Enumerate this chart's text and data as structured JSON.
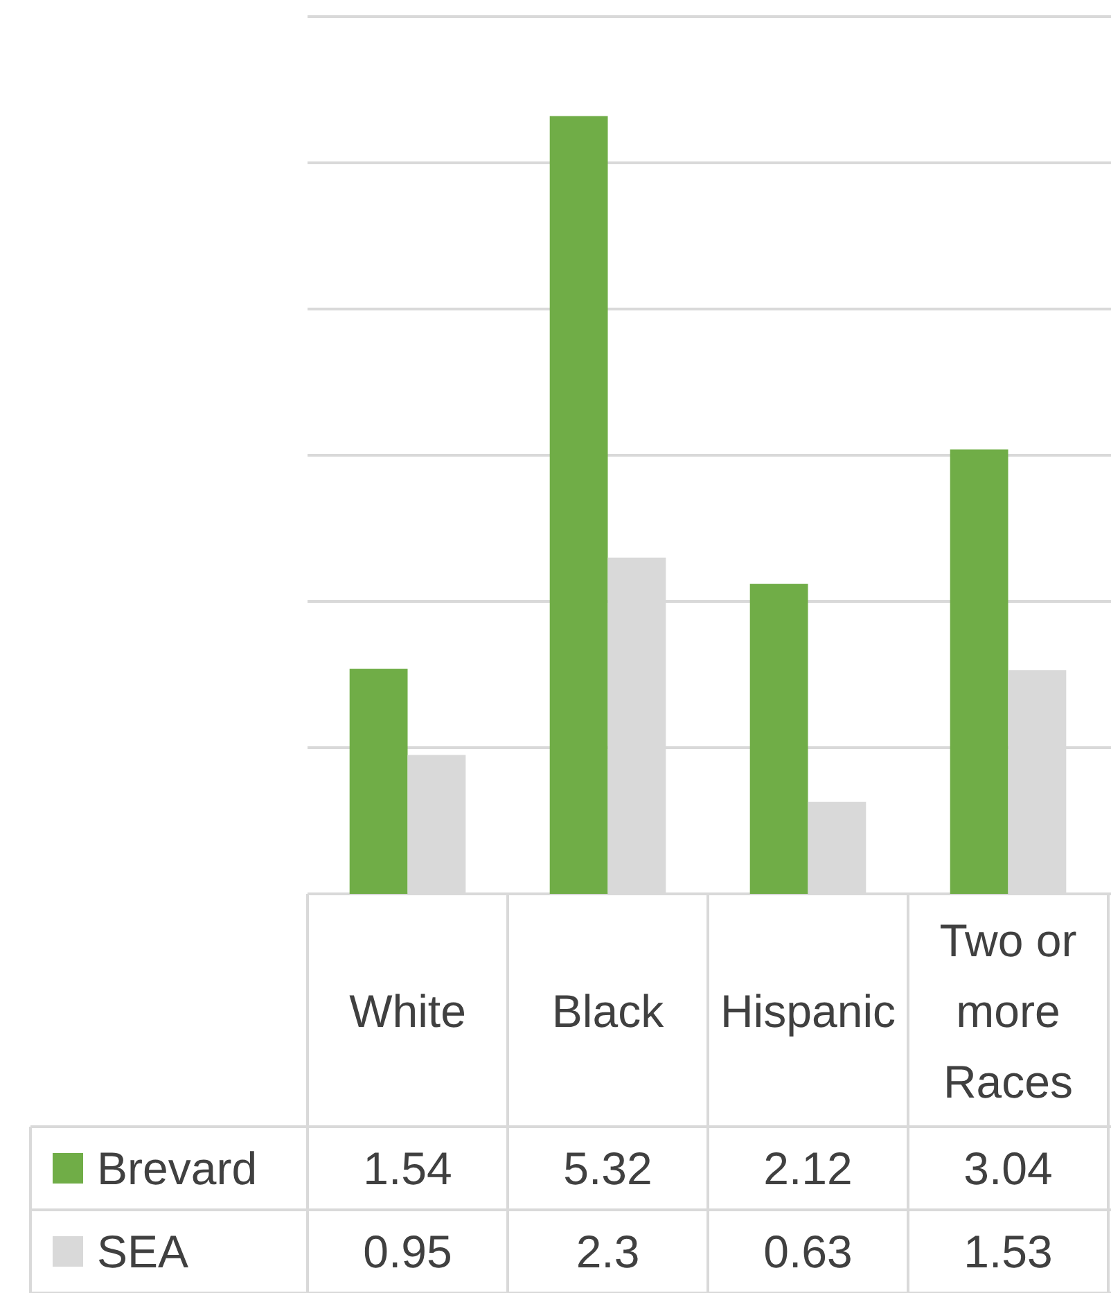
{
  "chart_data": {
    "type": "bar",
    "categories": [
      "White",
      "Black",
      "Hispanic",
      "Two or more Races"
    ],
    "series": [
      {
        "name": "Brevard",
        "color": "#70ad47",
        "values": [
          1.54,
          5.32,
          2.12,
          3.04
        ]
      },
      {
        "name": "SEA",
        "color": "#d9d9d9",
        "values": [
          0.95,
          2.3,
          0.63,
          1.53
        ]
      }
    ],
    "ylim": [
      0,
      6
    ],
    "yticks": [
      {
        "value": 0,
        "label": null
      },
      {
        "value": 1,
        "label": null
      },
      {
        "value": 2,
        "label": null
      },
      {
        "value": 3,
        "label": null
      },
      {
        "value": 4,
        "label": null
      },
      {
        "value": 5,
        "label": null
      },
      {
        "value": 6,
        "label": null
      }
    ],
    "grid": true,
    "data_labels": true,
    "legend": "bottom"
  }
}
